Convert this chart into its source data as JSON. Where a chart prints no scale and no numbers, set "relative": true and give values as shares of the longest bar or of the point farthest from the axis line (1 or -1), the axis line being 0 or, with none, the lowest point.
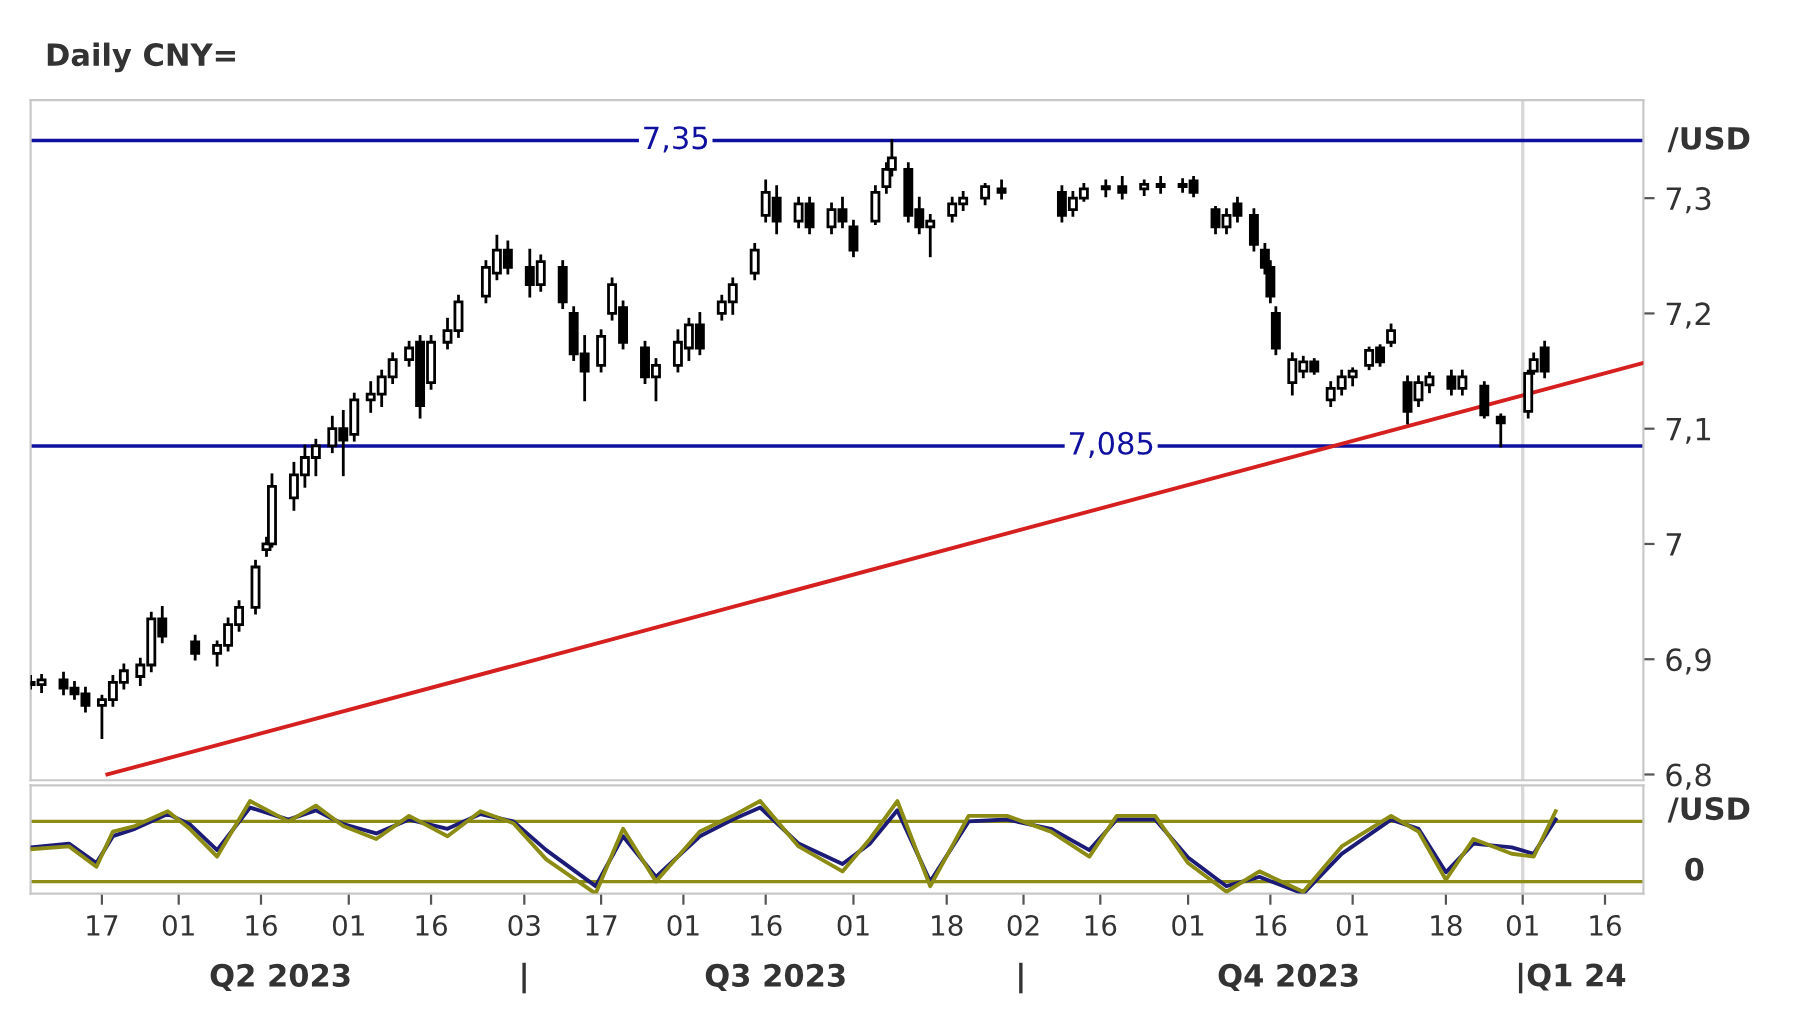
{
  "chart_data": [
    {
      "type": "candlestick",
      "title": "Daily CNY=",
      "ylabel": "/USD",
      "x": [
        "2023-04-04",
        "2023-04-06",
        "2023-04-10",
        "2023-04-12",
        "2023-04-14",
        "2023-04-17",
        "2023-04-19",
        "2023-04-21",
        "2023-04-24",
        "2023-04-26",
        "2023-04-28",
        "2023-05-04",
        "2023-05-08",
        "2023-05-10",
        "2023-05-12",
        "2023-05-15",
        "2023-05-17",
        "2023-05-18",
        "2023-05-22",
        "2023-05-24",
        "2023-05-26",
        "2023-05-29",
        "2023-05-31",
        "2023-06-02",
        "2023-06-05",
        "2023-06-07",
        "2023-06-09",
        "2023-06-12",
        "2023-06-14",
        "2023-06-16",
        "2023-06-19",
        "2023-06-21",
        "2023-06-26",
        "2023-06-28",
        "2023-06-30",
        "2023-07-04",
        "2023-07-06",
        "2023-07-10",
        "2023-07-12",
        "2023-07-14",
        "2023-07-17",
        "2023-07-19",
        "2023-07-21",
        "2023-07-25",
        "2023-07-27",
        "2023-07-31",
        "2023-08-02",
        "2023-08-04",
        "2023-08-08",
        "2023-08-10",
        "2023-08-14",
        "2023-08-16",
        "2023-08-18",
        "2023-08-22",
        "2023-08-24",
        "2023-08-28",
        "2023-08-30",
        "2023-09-01",
        "2023-09-05",
        "2023-09-07",
        "2023-09-08",
        "2023-09-11",
        "2023-09-13",
        "2023-09-15",
        "2023-09-19",
        "2023-09-21",
        "2023-09-25",
        "2023-09-28",
        "2023-10-09",
        "2023-10-11",
        "2023-10-13",
        "2023-10-17",
        "2023-10-20",
        "2023-10-24",
        "2023-10-27",
        "2023-10-31",
        "2023-11-02",
        "2023-11-06",
        "2023-11-08",
        "2023-11-10",
        "2023-11-13",
        "2023-11-15",
        "2023-11-16",
        "2023-11-17",
        "2023-11-20",
        "2023-11-22",
        "2023-11-24",
        "2023-11-27",
        "2023-11-29",
        "2023-12-01",
        "2023-12-04",
        "2023-12-06",
        "2023-12-08",
        "2023-12-11",
        "2023-12-13",
        "2023-12-15",
        "2023-12-19",
        "2023-12-21",
        "2023-12-25",
        "2023-12-28",
        "2024-01-02",
        "2024-01-03",
        "2024-01-05"
      ],
      "ohlc": [
        [
          6.88,
          6.885,
          6.875,
          6.878
        ],
        [
          6.878,
          6.886,
          6.872,
          6.882
        ],
        [
          6.882,
          6.888,
          6.87,
          6.875
        ],
        [
          6.875,
          6.88,
          6.866,
          6.87
        ],
        [
          6.87,
          6.875,
          6.855,
          6.86
        ],
        [
          6.86,
          6.868,
          6.832,
          6.865
        ],
        [
          6.865,
          6.885,
          6.86,
          6.88
        ],
        [
          6.88,
          6.895,
          6.875,
          6.89
        ],
        [
          6.885,
          6.9,
          6.878,
          6.895
        ],
        [
          6.895,
          6.94,
          6.89,
          6.935
        ],
        [
          6.935,
          6.945,
          6.915,
          6.92
        ],
        [
          6.915,
          6.92,
          6.9,
          6.905
        ],
        [
          6.905,
          6.915,
          6.895,
          6.912
        ],
        [
          6.912,
          6.935,
          6.908,
          6.93
        ],
        [
          6.93,
          6.95,
          6.925,
          6.945
        ],
        [
          6.945,
          6.985,
          6.94,
          6.98
        ],
        [
          6.995,
          7.005,
          6.99,
          7.0
        ],
        [
          7.0,
          7.06,
          6.998,
          7.05
        ],
        [
          7.04,
          7.07,
          7.03,
          7.06
        ],
        [
          7.06,
          7.085,
          7.05,
          7.075
        ],
        [
          7.075,
          7.09,
          7.06,
          7.085
        ],
        [
          7.085,
          7.11,
          7.08,
          7.1
        ],
        [
          7.1,
          7.115,
          7.06,
          7.09
        ],
        [
          7.095,
          7.13,
          7.09,
          7.125
        ],
        [
          7.125,
          7.14,
          7.115,
          7.13
        ],
        [
          7.13,
          7.15,
          7.12,
          7.145
        ],
        [
          7.145,
          7.165,
          7.14,
          7.16
        ],
        [
          7.16,
          7.175,
          7.155,
          7.17
        ],
        [
          7.175,
          7.18,
          7.11,
          7.12
        ],
        [
          7.14,
          7.18,
          7.135,
          7.175
        ],
        [
          7.175,
          7.195,
          7.17,
          7.185
        ],
        [
          7.185,
          7.215,
          7.18,
          7.21
        ],
        [
          7.215,
          7.245,
          7.21,
          7.24
        ],
        [
          7.235,
          7.267,
          7.23,
          7.255
        ],
        [
          7.255,
          7.262,
          7.235,
          7.24
        ],
        [
          7.24,
          7.255,
          7.215,
          7.225
        ],
        [
          7.225,
          7.25,
          7.22,
          7.245
        ],
        [
          7.24,
          7.245,
          7.205,
          7.21
        ],
        [
          7.2,
          7.205,
          7.16,
          7.165
        ],
        [
          7.165,
          7.18,
          7.125,
          7.15
        ],
        [
          7.155,
          7.185,
          7.15,
          7.18
        ],
        [
          7.2,
          7.23,
          7.195,
          7.225
        ],
        [
          7.205,
          7.21,
          7.17,
          7.175
        ],
        [
          7.17,
          7.175,
          7.14,
          7.145
        ],
        [
          7.145,
          7.16,
          7.125,
          7.155
        ],
        [
          7.155,
          7.185,
          7.15,
          7.175
        ],
        [
          7.17,
          7.195,
          7.16,
          7.19
        ],
        [
          7.19,
          7.2,
          7.165,
          7.17
        ],
        [
          7.2,
          7.215,
          7.195,
          7.21
        ],
        [
          7.21,
          7.23,
          7.2,
          7.225
        ],
        [
          7.235,
          7.26,
          7.23,
          7.255
        ],
        [
          7.285,
          7.315,
          7.28,
          7.305
        ],
        [
          7.3,
          7.31,
          7.27,
          7.28
        ],
        [
          7.28,
          7.3,
          7.275,
          7.295
        ],
        [
          7.295,
          7.3,
          7.27,
          7.275
        ],
        [
          7.275,
          7.295,
          7.27,
          7.29
        ],
        [
          7.29,
          7.3,
          7.275,
          7.28
        ],
        [
          7.275,
          7.28,
          7.25,
          7.255
        ],
        [
          7.28,
          7.31,
          7.278,
          7.305
        ],
        [
          7.31,
          7.33,
          7.305,
          7.325
        ],
        [
          7.325,
          7.35,
          7.32,
          7.335
        ],
        [
          7.325,
          7.33,
          7.28,
          7.285
        ],
        [
          7.29,
          7.3,
          7.27,
          7.275
        ],
        [
          7.275,
          7.285,
          7.25,
          7.28
        ],
        [
          7.285,
          7.3,
          7.28,
          7.295
        ],
        [
          7.295,
          7.305,
          7.29,
          7.3
        ],
        [
          7.3,
          7.312,
          7.295,
          7.31
        ],
        [
          7.308,
          7.315,
          7.3,
          7.305
        ],
        [
          7.305,
          7.31,
          7.28,
          7.285
        ],
        [
          7.29,
          7.305,
          7.285,
          7.3
        ],
        [
          7.3,
          7.312,
          7.298,
          7.308
        ],
        [
          7.308,
          7.315,
          7.302,
          7.31
        ],
        [
          7.31,
          7.318,
          7.3,
          7.305
        ],
        [
          7.308,
          7.315,
          7.303,
          7.312
        ],
        [
          7.312,
          7.318,
          7.305,
          7.31
        ],
        [
          7.31,
          7.316,
          7.306,
          7.312
        ],
        [
          7.315,
          7.318,
          7.302,
          7.305
        ],
        [
          7.29,
          7.292,
          7.27,
          7.275
        ],
        [
          7.275,
          7.29,
          7.27,
          7.285
        ],
        [
          7.295,
          7.3,
          7.28,
          7.285
        ],
        [
          7.285,
          7.29,
          7.255,
          7.26
        ],
        [
          7.255,
          7.26,
          7.235,
          7.24
        ],
        [
          7.24,
          7.245,
          7.21,
          7.215
        ],
        [
          7.2,
          7.205,
          7.165,
          7.17
        ],
        [
          7.14,
          7.165,
          7.13,
          7.16
        ],
        [
          7.15,
          7.162,
          7.145,
          7.158
        ],
        [
          7.158,
          7.16,
          7.148,
          7.15
        ],
        [
          7.125,
          7.14,
          7.12,
          7.135
        ],
        [
          7.135,
          7.15,
          7.13,
          7.145
        ],
        [
          7.145,
          7.152,
          7.138,
          7.15
        ],
        [
          7.155,
          7.17,
          7.152,
          7.168
        ],
        [
          7.17,
          7.172,
          7.155,
          7.158
        ],
        [
          7.175,
          7.19,
          7.172,
          7.185
        ],
        [
          7.14,
          7.145,
          7.105,
          7.115
        ],
        [
          7.125,
          7.145,
          7.12,
          7.14
        ],
        [
          7.138,
          7.148,
          7.132,
          7.145
        ],
        [
          7.145,
          7.15,
          7.13,
          7.135
        ],
        [
          7.135,
          7.15,
          7.13,
          7.145
        ],
        [
          7.137,
          7.14,
          7.11,
          7.112
        ],
        [
          7.11,
          7.112,
          7.085,
          7.105
        ],
        [
          7.115,
          7.15,
          7.11,
          7.148
        ],
        [
          7.15,
          7.165,
          7.148,
          7.16
        ],
        [
          7.17,
          7.175,
          7.145,
          7.15
        ]
      ],
      "series": [
        {
          "type": "line",
          "color": "#d62020",
          "x": [
            "2023-04-18",
            "2024-01-23"
          ],
          "values": [
            6.8,
            7.157
          ]
        }
      ],
      "ref_lines": [
        {
          "axis": "y",
          "value": 7.35,
          "label": "7,35",
          "color": "#1010a0"
        },
        {
          "axis": "y",
          "value": 7.085,
          "label": "7,085",
          "color": "#1010a0"
        },
        {
          "axis": "x",
          "value": "2024-01-01",
          "color": "#d8d8d8"
        }
      ],
      "xlim": [
        "2023-04-04",
        "2024-01-23"
      ],
      "ylim": [
        6.795,
        7.385
      ],
      "yticks": [
        {
          "value": 6.8,
          "label": "6,8"
        },
        {
          "value": 6.9,
          "label": "6,9"
        },
        {
          "value": 7,
          "label": "7"
        },
        {
          "value": 7.1,
          "label": "7,1"
        },
        {
          "value": 7.2,
          "label": "7,2"
        },
        {
          "value": 7.3,
          "label": "7,3"
        }
      ],
      "tick_labels": "y",
      "grid": false
    },
    {
      "type": "line",
      "relative": true,
      "ylabel": "/USD",
      "x": [
        "2023-04-04",
        "2023-04-11",
        "2023-04-16",
        "2023-04-19",
        "2023-04-23",
        "2023-04-29",
        "2023-05-03",
        "2023-05-08",
        "2023-05-14",
        "2023-05-21",
        "2023-05-26",
        "2023-05-31",
        "2023-06-06",
        "2023-06-12",
        "2023-06-19",
        "2023-06-25",
        "2023-07-01",
        "2023-07-07",
        "2023-07-16",
        "2023-07-21",
        "2023-07-27",
        "2023-08-04",
        "2023-08-10",
        "2023-08-15",
        "2023-08-22",
        "2023-08-30",
        "2023-09-04",
        "2023-09-09",
        "2023-09-15",
        "2023-09-22",
        "2023-09-29",
        "2023-10-07",
        "2023-10-14",
        "2023-10-19",
        "2023-10-26",
        "2023-11-01",
        "2023-11-08",
        "2023-11-14",
        "2023-11-22",
        "2023-11-29",
        "2023-12-08",
        "2023-12-13",
        "2023-12-18",
        "2023-12-23",
        "2023-12-30",
        "2024-01-03",
        "2024-01-07"
      ],
      "series": [
        {
          "color": "#1c1c78",
          "values": [
            0.5,
            0.54,
            0.33,
            0.62,
            0.7,
            0.86,
            0.75,
            0.47,
            0.93,
            0.8,
            0.9,
            0.75,
            0.65,
            0.8,
            0.7,
            0.86,
            0.78,
            0.47,
            0.08,
            0.62,
            0.18,
            0.62,
            0.8,
            0.93,
            0.54,
            0.32,
            0.54,
            0.9,
            0.13,
            0.78,
            0.8,
            0.7,
            0.47,
            0.8,
            0.8,
            0.39,
            0.08,
            0.18,
            0,
            0.43,
            0.8,
            0.7,
            0.23,
            0.54,
            0.5,
            0.43,
            0.8
          ]
        },
        {
          "color": "#8c8c14",
          "values": [
            0.48,
            0.51,
            0.29,
            0.67,
            0.73,
            0.89,
            0.7,
            0.4,
            1,
            0.78,
            0.95,
            0.73,
            0.59,
            0.84,
            0.62,
            0.89,
            0.76,
            0.37,
            0,
            0.7,
            0.13,
            0.67,
            0.84,
            1,
            0.51,
            0.24,
            0.59,
            1,
            0.08,
            0.84,
            0.84,
            0.67,
            0.4,
            0.84,
            0.84,
            0.33,
            0.02,
            0.24,
            0.02,
            0.51,
            0.84,
            0.67,
            0.15,
            0.59,
            0.43,
            0.4,
            0.89
          ]
        }
      ],
      "ref_lines": [
        {
          "axis": "y",
          "value": 0.78,
          "color": "#8c8c14"
        },
        {
          "axis": "y",
          "value": 0.13,
          "color": "#8c8c14"
        },
        {
          "axis": "x",
          "value": "2024-01-01",
          "color": "#d8d8d8"
        }
      ],
      "xlim": [
        "2023-04-04",
        "2024-01-23"
      ],
      "xticks": [
        {
          "value": "2023-04-17",
          "label": "17"
        },
        {
          "value": "2023-05-01",
          "label": "01"
        },
        {
          "value": "2023-05-16",
          "label": "16"
        },
        {
          "value": "2023-06-01",
          "label": "01"
        },
        {
          "value": "2023-06-16",
          "label": "16"
        },
        {
          "value": "2023-07-03",
          "label": "03"
        },
        {
          "value": "2023-07-17",
          "label": "17"
        },
        {
          "value": "2023-08-01",
          "label": "01"
        },
        {
          "value": "2023-08-16",
          "label": "16"
        },
        {
          "value": "2023-09-01",
          "label": "01"
        },
        {
          "value": "2023-09-18",
          "label": "18"
        },
        {
          "value": "2023-10-02",
          "label": "02"
        },
        {
          "value": "2023-10-16",
          "label": "16"
        },
        {
          "value": "2023-11-01",
          "label": "01"
        },
        {
          "value": "2023-11-16",
          "label": "16"
        },
        {
          "value": "2023-12-01",
          "label": "01"
        },
        {
          "value": "2023-12-18",
          "label": "18"
        },
        {
          "value": "2024-01-01",
          "label": "01"
        },
        {
          "value": "2024-01-16",
          "label": "16"
        }
      ],
      "annotations": [
        "Q2 2023",
        "|",
        "Q3 2023",
        "|",
        "Q4 2023",
        "|Q1 24",
        "0"
      ],
      "grid": false
    }
  ]
}
